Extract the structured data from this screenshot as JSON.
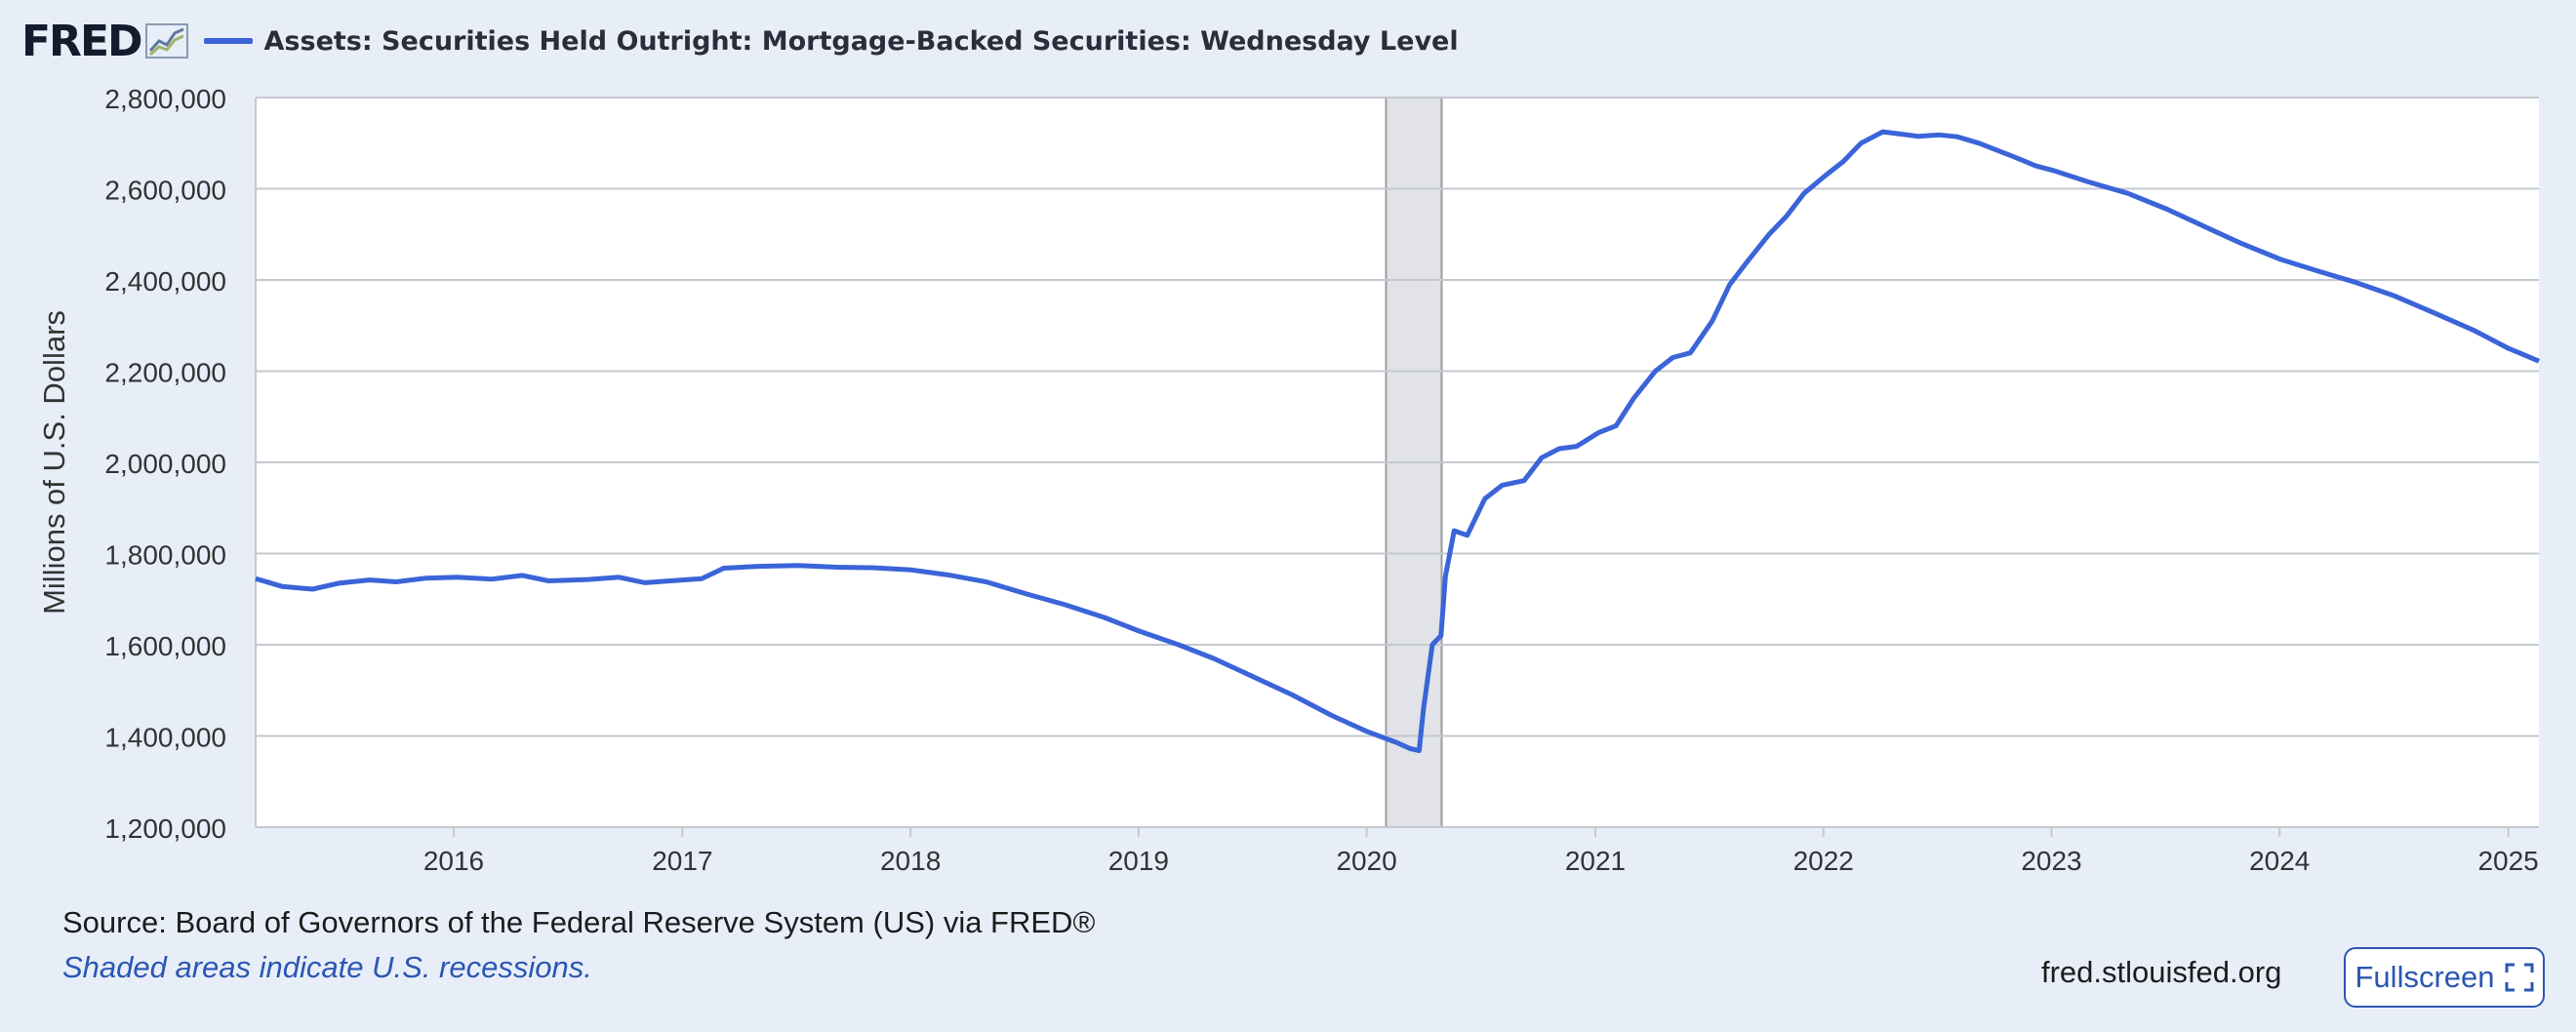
{
  "brand": {
    "logo_text": "FRED"
  },
  "legend": {
    "label": "Assets: Securities Held Outright: Mortgage-Backed Securities: Wednesday Level",
    "color": "#3a64d8"
  },
  "footer": {
    "source": "Source: Board of Governors of the Federal Reserve System (US) via FRED®",
    "recession_note": "Shaded areas indicate U.S. recessions.",
    "site": "fred.stlouisfed.org",
    "fullscreen_label": "Fullscreen"
  },
  "chart_data": {
    "type": "line",
    "title": "",
    "xlabel": "",
    "ylabel": "Millions of U.S. Dollars",
    "ylim": [
      1200000,
      2800000
    ],
    "xlim": [
      "2015-02-18",
      "2025-02-19"
    ],
    "y_ticks": [
      "1,200,000",
      "1,400,000",
      "1,600,000",
      "1,800,000",
      "2,000,000",
      "2,200,000",
      "2,400,000",
      "2,600,000",
      "2,800,000"
    ],
    "x_ticks": [
      "2016",
      "2017",
      "2018",
      "2019",
      "2020",
      "2021",
      "2022",
      "2023",
      "2024",
      "2025"
    ],
    "grid": "horizontal",
    "recessions": [
      {
        "start": "2020-02-01",
        "end": "2020-04-30"
      }
    ],
    "series": [
      {
        "name": "Assets: Securities Held Outright: Mortgage-Backed Securities: Wednesday Level",
        "color": "#3a64d8",
        "points": [
          [
            "2015-02-18",
            1745000
          ],
          [
            "2015-04-01",
            1728000
          ],
          [
            "2015-05-20",
            1722000
          ],
          [
            "2015-07-01",
            1735000
          ],
          [
            "2015-08-19",
            1742000
          ],
          [
            "2015-10-01",
            1738000
          ],
          [
            "2015-11-18",
            1746000
          ],
          [
            "2016-01-06",
            1748000
          ],
          [
            "2016-03-02",
            1744000
          ],
          [
            "2016-04-20",
            1752000
          ],
          [
            "2016-06-01",
            1740000
          ],
          [
            "2016-08-03",
            1743000
          ],
          [
            "2016-09-21",
            1748000
          ],
          [
            "2016-11-02",
            1736000
          ],
          [
            "2016-12-21",
            1741000
          ],
          [
            "2017-02-01",
            1745000
          ],
          [
            "2017-03-08",
            1768000
          ],
          [
            "2017-05-03",
            1772000
          ],
          [
            "2017-07-05",
            1774000
          ],
          [
            "2017-09-06",
            1770000
          ],
          [
            "2017-11-01",
            1769000
          ],
          [
            "2018-01-03",
            1764000
          ],
          [
            "2018-03-07",
            1752000
          ],
          [
            "2018-05-02",
            1738000
          ],
          [
            "2018-07-04",
            1712000
          ],
          [
            "2018-09-05",
            1688000
          ],
          [
            "2018-11-07",
            1660000
          ],
          [
            "2019-01-02",
            1630000
          ],
          [
            "2019-03-06",
            1600000
          ],
          [
            "2019-05-01",
            1570000
          ],
          [
            "2019-07-03",
            1530000
          ],
          [
            "2019-09-04",
            1490000
          ],
          [
            "2019-11-06",
            1445000
          ],
          [
            "2020-01-01",
            1410000
          ],
          [
            "2020-02-19",
            1385000
          ],
          [
            "2020-03-11",
            1372000
          ],
          [
            "2020-03-25",
            1368000
          ],
          [
            "2020-04-01",
            1460000
          ],
          [
            "2020-04-15",
            1600000
          ],
          [
            "2020-04-29",
            1620000
          ],
          [
            "2020-05-06",
            1750000
          ],
          [
            "2020-05-20",
            1850000
          ],
          [
            "2020-06-10",
            1840000
          ],
          [
            "2020-07-08",
            1920000
          ],
          [
            "2020-08-05",
            1950000
          ],
          [
            "2020-09-09",
            1960000
          ],
          [
            "2020-10-07",
            2010000
          ],
          [
            "2020-11-04",
            2030000
          ],
          [
            "2020-12-02",
            2035000
          ],
          [
            "2021-01-06",
            2065000
          ],
          [
            "2021-02-03",
            2080000
          ],
          [
            "2021-03-03",
            2140000
          ],
          [
            "2021-04-07",
            2200000
          ],
          [
            "2021-05-05",
            2230000
          ],
          [
            "2021-06-02",
            2240000
          ],
          [
            "2021-07-07",
            2310000
          ],
          [
            "2021-08-04",
            2390000
          ],
          [
            "2021-09-01",
            2440000
          ],
          [
            "2021-10-06",
            2500000
          ],
          [
            "2021-11-03",
            2540000
          ],
          [
            "2021-12-01",
            2590000
          ],
          [
            "2022-01-05",
            2630000
          ],
          [
            "2022-02-02",
            2660000
          ],
          [
            "2022-03-02",
            2700000
          ],
          [
            "2022-04-06",
            2725000
          ],
          [
            "2022-05-04",
            2720000
          ],
          [
            "2022-06-01",
            2715000
          ],
          [
            "2022-07-06",
            2718000
          ],
          [
            "2022-08-03",
            2714000
          ],
          [
            "2022-09-07",
            2700000
          ],
          [
            "2022-10-05",
            2685000
          ],
          [
            "2022-11-02",
            2670000
          ],
          [
            "2022-12-07",
            2650000
          ],
          [
            "2023-01-04",
            2640000
          ],
          [
            "2023-03-01",
            2615000
          ],
          [
            "2023-05-03",
            2590000
          ],
          [
            "2023-07-05",
            2555000
          ],
          [
            "2023-09-06",
            2515000
          ],
          [
            "2023-11-01",
            2480000
          ],
          [
            "2024-01-03",
            2445000
          ],
          [
            "2024-03-06",
            2418000
          ],
          [
            "2024-05-01",
            2395000
          ],
          [
            "2024-07-03",
            2365000
          ],
          [
            "2024-09-04",
            2328000
          ],
          [
            "2024-11-06",
            2290000
          ],
          [
            "2025-01-01",
            2250000
          ],
          [
            "2025-02-19",
            2222000
          ]
        ]
      }
    ]
  }
}
